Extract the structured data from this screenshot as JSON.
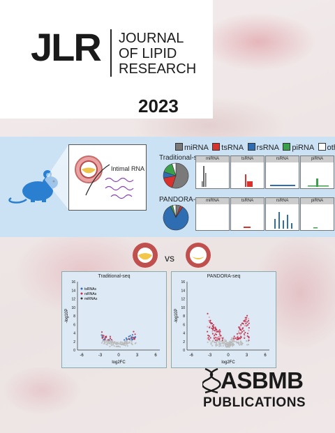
{
  "journal": {
    "abbrev": "JLR",
    "name_lines": [
      "JOURNAL",
      "OF LIPID",
      "RESEARCH"
    ],
    "year": "2023"
  },
  "graphic": {
    "inset_label": "Intimal RNA",
    "legend": [
      {
        "label": "miRNA",
        "color": "#7a7a7a"
      },
      {
        "label": "tsRNA",
        "color": "#d8322f"
      },
      {
        "label": "rsRNA",
        "color": "#2f6db3"
      },
      {
        "label": "piRNA",
        "color": "#3aa04a"
      },
      {
        "label": "other",
        "color": "#ffffff"
      }
    ],
    "rows": [
      {
        "label": "Traditional-seq",
        "pie": [
          0.55,
          0.17,
          0.08,
          0.15,
          0.05
        ]
      },
      {
        "label": "PANDORA-seq",
        "pie": [
          0.06,
          0.03,
          0.84,
          0.03,
          0.04
        ]
      }
    ],
    "panel_headers": [
      "miRNA",
      "tsRNA",
      "rsRNA",
      "piRNA"
    ]
  },
  "comparison": {
    "vs_label": "vs",
    "plots": [
      {
        "title": "Traditional-seq",
        "legend": [
          "tsRNAs",
          "rsRNAs",
          "miRNAs"
        ]
      },
      {
        "title": "PANDORA-seq",
        "legend": []
      }
    ],
    "x_ticks": [
      "-6",
      "-3",
      "0",
      "3",
      "6"
    ],
    "y_ticks": [
      "0",
      "2",
      "4",
      "6",
      "8",
      "10",
      "12",
      "14",
      "16"
    ],
    "xlabel": "log2FC",
    "ylabel": "-log10P"
  },
  "publisher": {
    "name": "ASBMB",
    "line2": "PUBLICATIONS"
  }
}
